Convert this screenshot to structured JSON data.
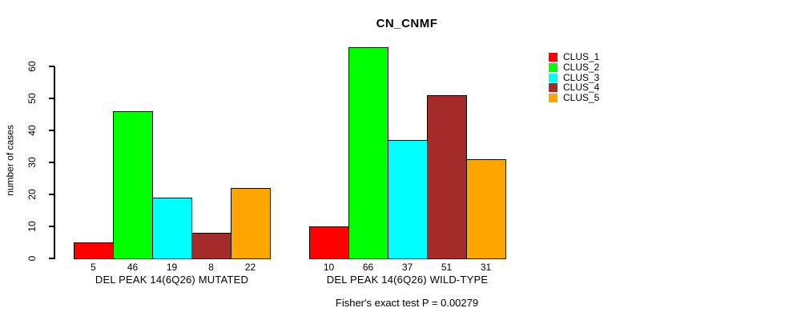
{
  "chart_data": {
    "type": "bar",
    "title": "CN_CNMF",
    "xlabel": "",
    "ylabel": "number of cases",
    "annotation": "Fisher's exact test P = 0.00279",
    "categories": [
      "DEL PEAK 14(6Q26) MUTATED",
      "DEL PEAK 14(6Q26) WILD-TYPE"
    ],
    "series": [
      {
        "name": "CLUS_1",
        "color": "#FF0000",
        "values": [
          5,
          10
        ]
      },
      {
        "name": "CLUS_2",
        "color": "#00FF00",
        "values": [
          46,
          66
        ]
      },
      {
        "name": "CLUS_3",
        "color": "#00FFFF",
        "values": [
          19,
          37
        ]
      },
      {
        "name": "CLUS_4",
        "color": "#A52A2A",
        "values": [
          8,
          51
        ]
      },
      {
        "name": "CLUS_5",
        "color": "#FFA500",
        "values": [
          22,
          31
        ]
      }
    ],
    "ylim": [
      0,
      60
    ],
    "yticks": [
      0,
      10,
      20,
      30,
      40,
      50,
      60
    ],
    "bar_value_labels": true,
    "grid": false,
    "legend_position": "right-outside-top"
  }
}
